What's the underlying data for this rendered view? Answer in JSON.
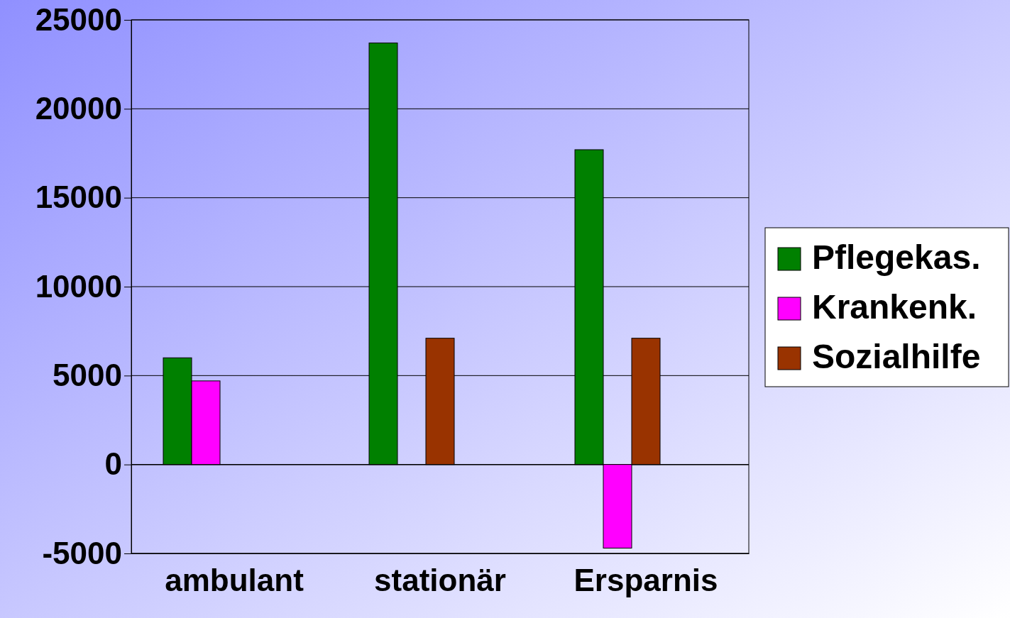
{
  "chart_data": {
    "type": "bar",
    "categories": [
      "ambulant",
      "stationär",
      "Ersparnis"
    ],
    "series": [
      {
        "name": "Pflegekas.",
        "color": "#008000",
        "values": [
          6000,
          23700,
          17700
        ]
      },
      {
        "name": "Krankenk.",
        "color": "#ff00ff",
        "values": [
          4700,
          0,
          -4700
        ]
      },
      {
        "name": "Sozialhilfe",
        "color": "#993300",
        "values": [
          0,
          7100,
          7100
        ]
      }
    ],
    "ylim": [
      -5000,
      25000
    ],
    "yticks": [
      -5000,
      0,
      5000,
      10000,
      15000,
      20000,
      25000
    ],
    "grid": "y",
    "legend": "right"
  }
}
